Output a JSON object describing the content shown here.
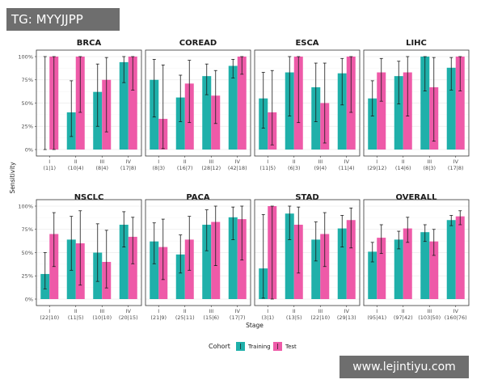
{
  "watermark": {
    "top_left": "TG: MYYJJPP",
    "bottom_right": "www.lejintiyu.com"
  },
  "colors": {
    "training": "#1fb0aa",
    "test": "#ee5aa8",
    "panel_border": "#333333",
    "grid": "#ebebeb"
  },
  "chart_data": {
    "type": "bar",
    "xlabel": "Stage",
    "ylabel": "Sensitivity",
    "ylim": [
      0,
      100
    ],
    "yticks": [
      "0%",
      "25%",
      "50%",
      "75%",
      "100%"
    ],
    "legend": {
      "title": "Cohort",
      "entries": [
        "Training",
        "Test"
      ],
      "placement": "bottom"
    },
    "panels": [
      {
        "title": "BRCA",
        "categories": [
          "I",
          "II",
          "III",
          "IV"
        ],
        "counts": [
          "(1|1)",
          "(10|4)",
          "(8|4)",
          "(17|8)"
        ],
        "series": [
          {
            "name": "Training",
            "values": [
              0,
              40,
              62,
              94
            ],
            "lower": [
              0,
              14,
              25,
              72
            ],
            "upper": [
              100,
              74,
              92,
              100
            ]
          },
          {
            "name": "Test",
            "values": [
              100,
              100,
              75,
              100
            ],
            "lower": [
              0,
              40,
              19,
              64
            ],
            "upper": [
              100,
              100,
              99,
              100
            ]
          }
        ]
      },
      {
        "title": "COREAD",
        "categories": [
          "I",
          "II",
          "III",
          "IV"
        ],
        "counts": [
          "(8|3)",
          "(16|7)",
          "(28|12)",
          "(42|18)"
        ],
        "series": [
          {
            "name": "Training",
            "values": [
              75,
              56,
              79,
              90
            ],
            "lower": [
              35,
              30,
              59,
              77
            ],
            "upper": [
              97,
              80,
              92,
              97
            ]
          },
          {
            "name": "Test",
            "values": [
              33,
              71,
              58,
              100
            ],
            "lower": [
              1,
              29,
              28,
              81
            ],
            "upper": [
              91,
              96,
              85,
              100
            ]
          }
        ]
      },
      {
        "title": "ESCA",
        "categories": [
          "I",
          "II",
          "III",
          "IV"
        ],
        "counts": [
          "(11|5)",
          "(6|3)",
          "(9|4)",
          "(11|4)"
        ],
        "series": [
          {
            "name": "Training",
            "values": [
              55,
              83,
              67,
              82
            ],
            "lower": [
              23,
              36,
              30,
              48
            ],
            "upper": [
              83,
              100,
              93,
              98
            ]
          },
          {
            "name": "Test",
            "values": [
              40,
              100,
              50,
              100
            ],
            "lower": [
              5,
              29,
              7,
              40
            ],
            "upper": [
              85,
              100,
              93,
              100
            ]
          }
        ]
      },
      {
        "title": "LIHC",
        "categories": [
          "I",
          "II",
          "III",
          "IV"
        ],
        "counts": [
          "(29|12)",
          "(14|6)",
          "(8|3)",
          "(17|8)"
        ],
        "series": [
          {
            "name": "Training",
            "values": [
              55,
              79,
              100,
              88
            ],
            "lower": [
              36,
              49,
              63,
              64
            ],
            "upper": [
              74,
              95,
              100,
              99
            ]
          },
          {
            "name": "Test",
            "values": [
              83,
              83,
              67,
              100
            ],
            "lower": [
              52,
              36,
              9,
              63
            ],
            "upper": [
              98,
              100,
              99,
              100
            ]
          }
        ]
      },
      {
        "title": "NSCLC",
        "categories": [
          "I",
          "II",
          "III",
          "IV"
        ],
        "counts": [
          "(22|10)",
          "(11|5)",
          "(10|10)",
          "(20|15)"
        ],
        "series": [
          {
            "name": "Training",
            "values": [
              27,
              64,
              50,
              80
            ],
            "lower": [
              11,
              31,
              19,
              56
            ],
            "upper": [
              50,
              89,
              81,
              94
            ]
          },
          {
            "name": "Test",
            "values": [
              70,
              60,
              40,
              67
            ],
            "lower": [
              35,
              15,
              12,
              38
            ],
            "upper": [
              93,
              95,
              74,
              88
            ]
          }
        ]
      },
      {
        "title": "PACA",
        "categories": [
          "I",
          "II",
          "III",
          "IV"
        ],
        "counts": [
          "(21|9)",
          "(25|11)",
          "(15|6)",
          "(17|7)"
        ],
        "series": [
          {
            "name": "Training",
            "values": [
              62,
              48,
              80,
              88
            ],
            "lower": [
              38,
              28,
              52,
              64
            ],
            "upper": [
              82,
              69,
              96,
              99
            ]
          },
          {
            "name": "Test",
            "values": [
              56,
              64,
              83,
              86
            ],
            "lower": [
              21,
              31,
              36,
              42
            ],
            "upper": [
              86,
              89,
              100,
              100
            ]
          }
        ]
      },
      {
        "title": "STAD",
        "categories": [
          "I",
          "II",
          "III",
          "IV"
        ],
        "counts": [
          "(3|1)",
          "(13|5)",
          "(22|10)",
          "(29|13)"
        ],
        "series": [
          {
            "name": "Training",
            "values": [
              33,
              92,
              64,
              76
            ],
            "lower": [
              1,
              64,
              41,
              56
            ],
            "upper": [
              91,
              100,
              83,
              90
            ]
          },
          {
            "name": "Test",
            "values": [
              100,
              80,
              70,
              85
            ],
            "lower": [
              0,
              28,
              35,
              55
            ],
            "upper": [
              100,
              99,
              93,
              98
            ]
          }
        ]
      },
      {
        "title": "OVERALL",
        "categories": [
          "I",
          "II",
          "III",
          "IV"
        ],
        "counts": [
          "(95|41)",
          "(97|42)",
          "(103|50)",
          "(160|76)"
        ],
        "series": [
          {
            "name": "Training",
            "values": [
              51,
              64,
              72,
              85
            ],
            "lower": [
              40,
              54,
              62,
              79
            ],
            "upper": [
              61,
              73,
              80,
              90
            ]
          },
          {
            "name": "Test",
            "values": [
              66,
              76,
              62,
              89
            ],
            "lower": [
              49,
              61,
              47,
              80
            ],
            "upper": [
              80,
              88,
              75,
              95
            ]
          }
        ]
      }
    ]
  }
}
